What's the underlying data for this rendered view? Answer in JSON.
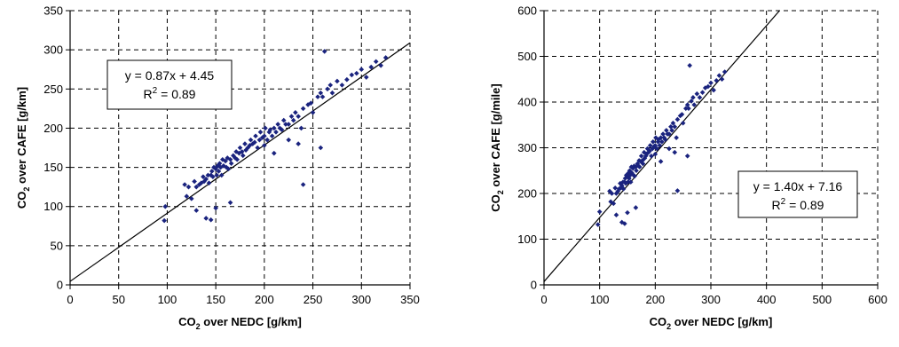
{
  "chart_data": [
    {
      "type": "scatter",
      "title": "",
      "xlabel": {
        "prefix": "CO",
        "sub": "2",
        "suffix": " over NEDC [g/km]"
      },
      "ylabel": {
        "prefix": "CO",
        "sub": "2",
        "suffix": " over CAFE [g/km]"
      },
      "xlim": [
        0,
        350
      ],
      "ylim": [
        0,
        350
      ],
      "xticks": [
        "0",
        "50",
        "100",
        "150",
        "200",
        "250",
        "300",
        "350"
      ],
      "yticks": [
        "0",
        "50",
        "100",
        "150",
        "200",
        "250",
        "300",
        "350"
      ],
      "grid": true,
      "marker_color": "#1a237e",
      "trendline": {
        "slope": 0.87,
        "intercept": 4.45
      },
      "annotation": {
        "equation": "y = 0.87x + 4.45",
        "r2_prefix": "R",
        "r2_sup": "2",
        "r2_value": " = 0.89"
      },
      "series": [
        {
          "x": [
            97,
            98,
            118,
            120,
            122,
            125,
            128,
            130,
            133,
            135,
            137,
            138,
            140,
            142,
            143,
            145,
            146,
            147,
            148,
            150,
            151,
            152,
            153,
            154,
            155,
            156,
            157,
            158,
            160,
            161,
            162,
            163,
            165,
            166,
            168,
            170,
            171,
            172,
            174,
            175,
            177,
            178,
            180,
            181,
            183,
            185,
            186,
            188,
            190,
            191,
            193,
            195,
            196,
            198,
            200,
            201,
            203,
            205,
            206,
            208,
            210,
            212,
            214,
            216,
            218,
            220,
            222,
            225,
            228,
            230,
            232,
            235,
            238,
            240,
            245,
            248,
            250,
            255,
            258,
            260,
            265,
            268,
            270,
            275,
            280,
            285,
            290,
            295,
            300,
            305,
            310,
            315,
            320,
            325,
            262,
            258,
            235,
            240,
            130,
            140,
            145,
            150,
            165,
            200,
            210,
            225
          ],
          "y": [
            82,
            100,
            128,
            113,
            125,
            110,
            132,
            125,
            128,
            130,
            138,
            132,
            135,
            140,
            130,
            140,
            145,
            138,
            150,
            148,
            140,
            152,
            145,
            155,
            150,
            140,
            160,
            152,
            158,
            150,
            162,
            148,
            160,
            155,
            165,
            162,
            170,
            160,
            168,
            175,
            170,
            165,
            180,
            172,
            175,
            178,
            185,
            180,
            182,
            190,
            175,
            185,
            195,
            188,
            190,
            200,
            185,
            195,
            198,
            190,
            200,
            195,
            205,
            200,
            198,
            210,
            205,
            205,
            215,
            210,
            220,
            215,
            200,
            225,
            230,
            232,
            220,
            240,
            245,
            240,
            250,
            255,
            245,
            260,
            255,
            262,
            268,
            270,
            275,
            265,
            278,
            285,
            280,
            290,
            298,
            175,
            180,
            128,
            95,
            85,
            83,
            98,
            105,
            178,
            168,
            185
          ]
        }
      ]
    },
    {
      "type": "scatter",
      "title": "",
      "xlabel": {
        "prefix": "CO",
        "sub": "2",
        "suffix": " over NEDC [g/km]"
      },
      "ylabel": {
        "prefix": "CO",
        "sub": "2",
        "suffix": " over CAFE [g/mile]"
      },
      "xlim": [
        0,
        600
      ],
      "ylim": [
        0,
        600
      ],
      "xticks": [
        "0",
        "100",
        "200",
        "300",
        "400",
        "500",
        "600"
      ],
      "yticks": [
        "0",
        "100",
        "200",
        "300",
        "400",
        "500",
        "600"
      ],
      "grid": true,
      "marker_color": "#1a237e",
      "trendline": {
        "slope": 1.4,
        "intercept": 7.16
      },
      "annotation": {
        "equation": "y = 1.40x + 7.16",
        "r2_prefix": "R",
        "r2_sup": "2",
        "r2_value": " = 0.89"
      },
      "series": [
        {
          "x": [
            97,
            100,
            118,
            120,
            122,
            125,
            128,
            130,
            133,
            135,
            137,
            138,
            140,
            142,
            143,
            145,
            146,
            147,
            148,
            150,
            151,
            152,
            153,
            154,
            155,
            156,
            157,
            158,
            160,
            161,
            162,
            163,
            165,
            166,
            168,
            170,
            171,
            172,
            174,
            175,
            177,
            178,
            180,
            181,
            183,
            185,
            186,
            188,
            190,
            191,
            193,
            195,
            196,
            198,
            200,
            201,
            203,
            205,
            206,
            208,
            210,
            212,
            214,
            216,
            218,
            220,
            222,
            225,
            228,
            230,
            232,
            235,
            238,
            240,
            245,
            248,
            250,
            255,
            258,
            260,
            265,
            268,
            270,
            275,
            280,
            285,
            290,
            295,
            300,
            305,
            310,
            315,
            320,
            325,
            262,
            258,
            235,
            240,
            130,
            140,
            145,
            150,
            165,
            200,
            210,
            225
          ],
          "y": [
            132,
            160,
            205,
            182,
            200,
            178,
            212,
            200,
            205,
            210,
            222,
            212,
            217,
            225,
            210,
            225,
            233,
            222,
            240,
            238,
            225,
            245,
            233,
            250,
            240,
            225,
            258,
            245,
            255,
            240,
            260,
            238,
            258,
            250,
            265,
            260,
            272,
            258,
            270,
            282,
            272,
            265,
            290,
            277,
            282,
            287,
            298,
            290,
            293,
            305,
            282,
            298,
            313,
            303,
            305,
            322,
            298,
            313,
            318,
            305,
            322,
            313,
            330,
            322,
            318,
            338,
            330,
            330,
            346,
            338,
            354,
            346,
            322,
            362,
            370,
            373,
            354,
            386,
            394,
            386,
            402,
            410,
            394,
            418,
            410,
            421,
            431,
            434,
            442,
            426,
            447,
            458,
            450,
            466,
            480,
            282,
            290,
            206,
            153,
            137,
            134,
            158,
            169,
            286,
            270,
            298
          ]
        }
      ]
    }
  ]
}
